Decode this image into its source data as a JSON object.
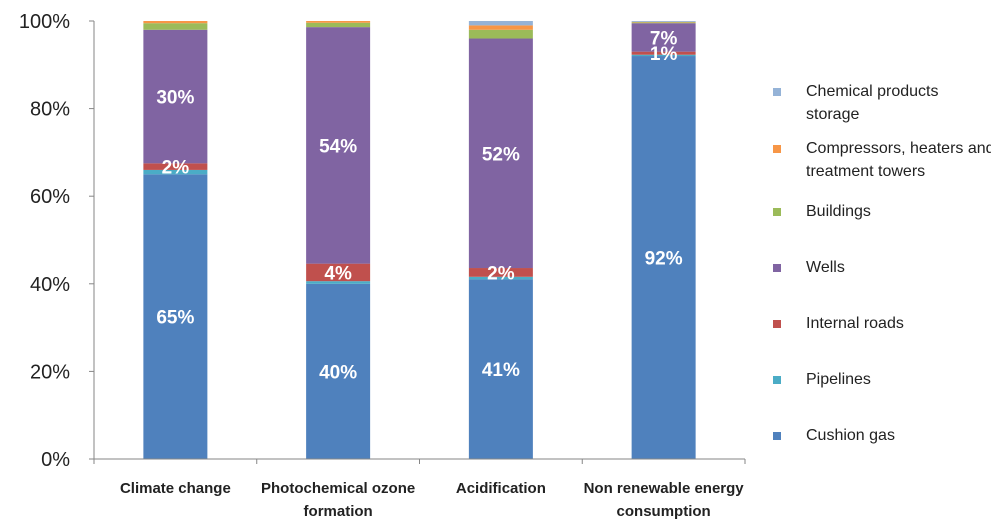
{
  "chart_data": {
    "type": "bar",
    "stacked": true,
    "normalized_percent": true,
    "title": "",
    "xlabel": "",
    "ylabel": "",
    "ylim": [
      0,
      100
    ],
    "yticks": [
      "0%",
      "20%",
      "40%",
      "60%",
      "80%",
      "100%"
    ],
    "grid": false,
    "legend_position": "right",
    "categories": [
      "Climate change",
      "Photochemical ozone formation",
      "Acidification",
      "Non renewable energy consumption"
    ],
    "category_lines": [
      [
        "Climate change"
      ],
      [
        "Photochemical ozone",
        "formation"
      ],
      [
        "Acidification"
      ],
      [
        "Non renewable energy",
        "consumption"
      ]
    ],
    "series": [
      {
        "name": "Cushion gas",
        "color": "#4F81BD",
        "values": [
          65,
          40,
          41,
          92
        ],
        "labels": [
          "65%",
          "40%",
          "41%",
          "92%"
        ]
      },
      {
        "name": "Pipelines",
        "color": "#4BACC6",
        "values": [
          1,
          0.6,
          0.6,
          0.3
        ],
        "labels": [
          "",
          "",
          "",
          ""
        ]
      },
      {
        "name": "Internal roads",
        "color": "#C0504D",
        "values": [
          1.5,
          4,
          2,
          0.7
        ],
        "labels": [
          "2%",
          "4%",
          "2%",
          "1%"
        ]
      },
      {
        "name": "Wells",
        "color": "#8064A2",
        "values": [
          30.5,
          54,
          52.4,
          6.5
        ],
        "labels": [
          "30%",
          "54%",
          "52%",
          "7%"
        ]
      },
      {
        "name": "Buildings",
        "color": "#9BBB59",
        "values": [
          1.5,
          1,
          2,
          0.2
        ],
        "labels": [
          "",
          "",
          "",
          ""
        ]
      },
      {
        "name": "Compressors, heaters and treatment towers",
        "color": "#F79646",
        "values": [
          0.5,
          0.4,
          1,
          0.1
        ],
        "labels": [
          "",
          "",
          "",
          ""
        ]
      },
      {
        "name": "Chemical products storage",
        "color": "#95B3D7",
        "values": [
          0,
          0,
          1,
          0.2
        ],
        "labels": [
          "",
          "",
          "",
          ""
        ]
      }
    ]
  },
  "legend": {
    "items": [
      {
        "label": "Chemical products storage",
        "color": "#95B3D7"
      },
      {
        "label": "Compressors, heaters and treatment towers",
        "color": "#F79646"
      },
      {
        "label": "Buildings",
        "color": "#9BBB59"
      },
      {
        "label": "Wells",
        "color": "#8064A2"
      },
      {
        "label": "Internal roads",
        "color": "#C0504D"
      },
      {
        "label": "Pipelines",
        "color": "#4BACC6"
      },
      {
        "label": "Cushion gas",
        "color": "#4F81BD"
      }
    ]
  }
}
